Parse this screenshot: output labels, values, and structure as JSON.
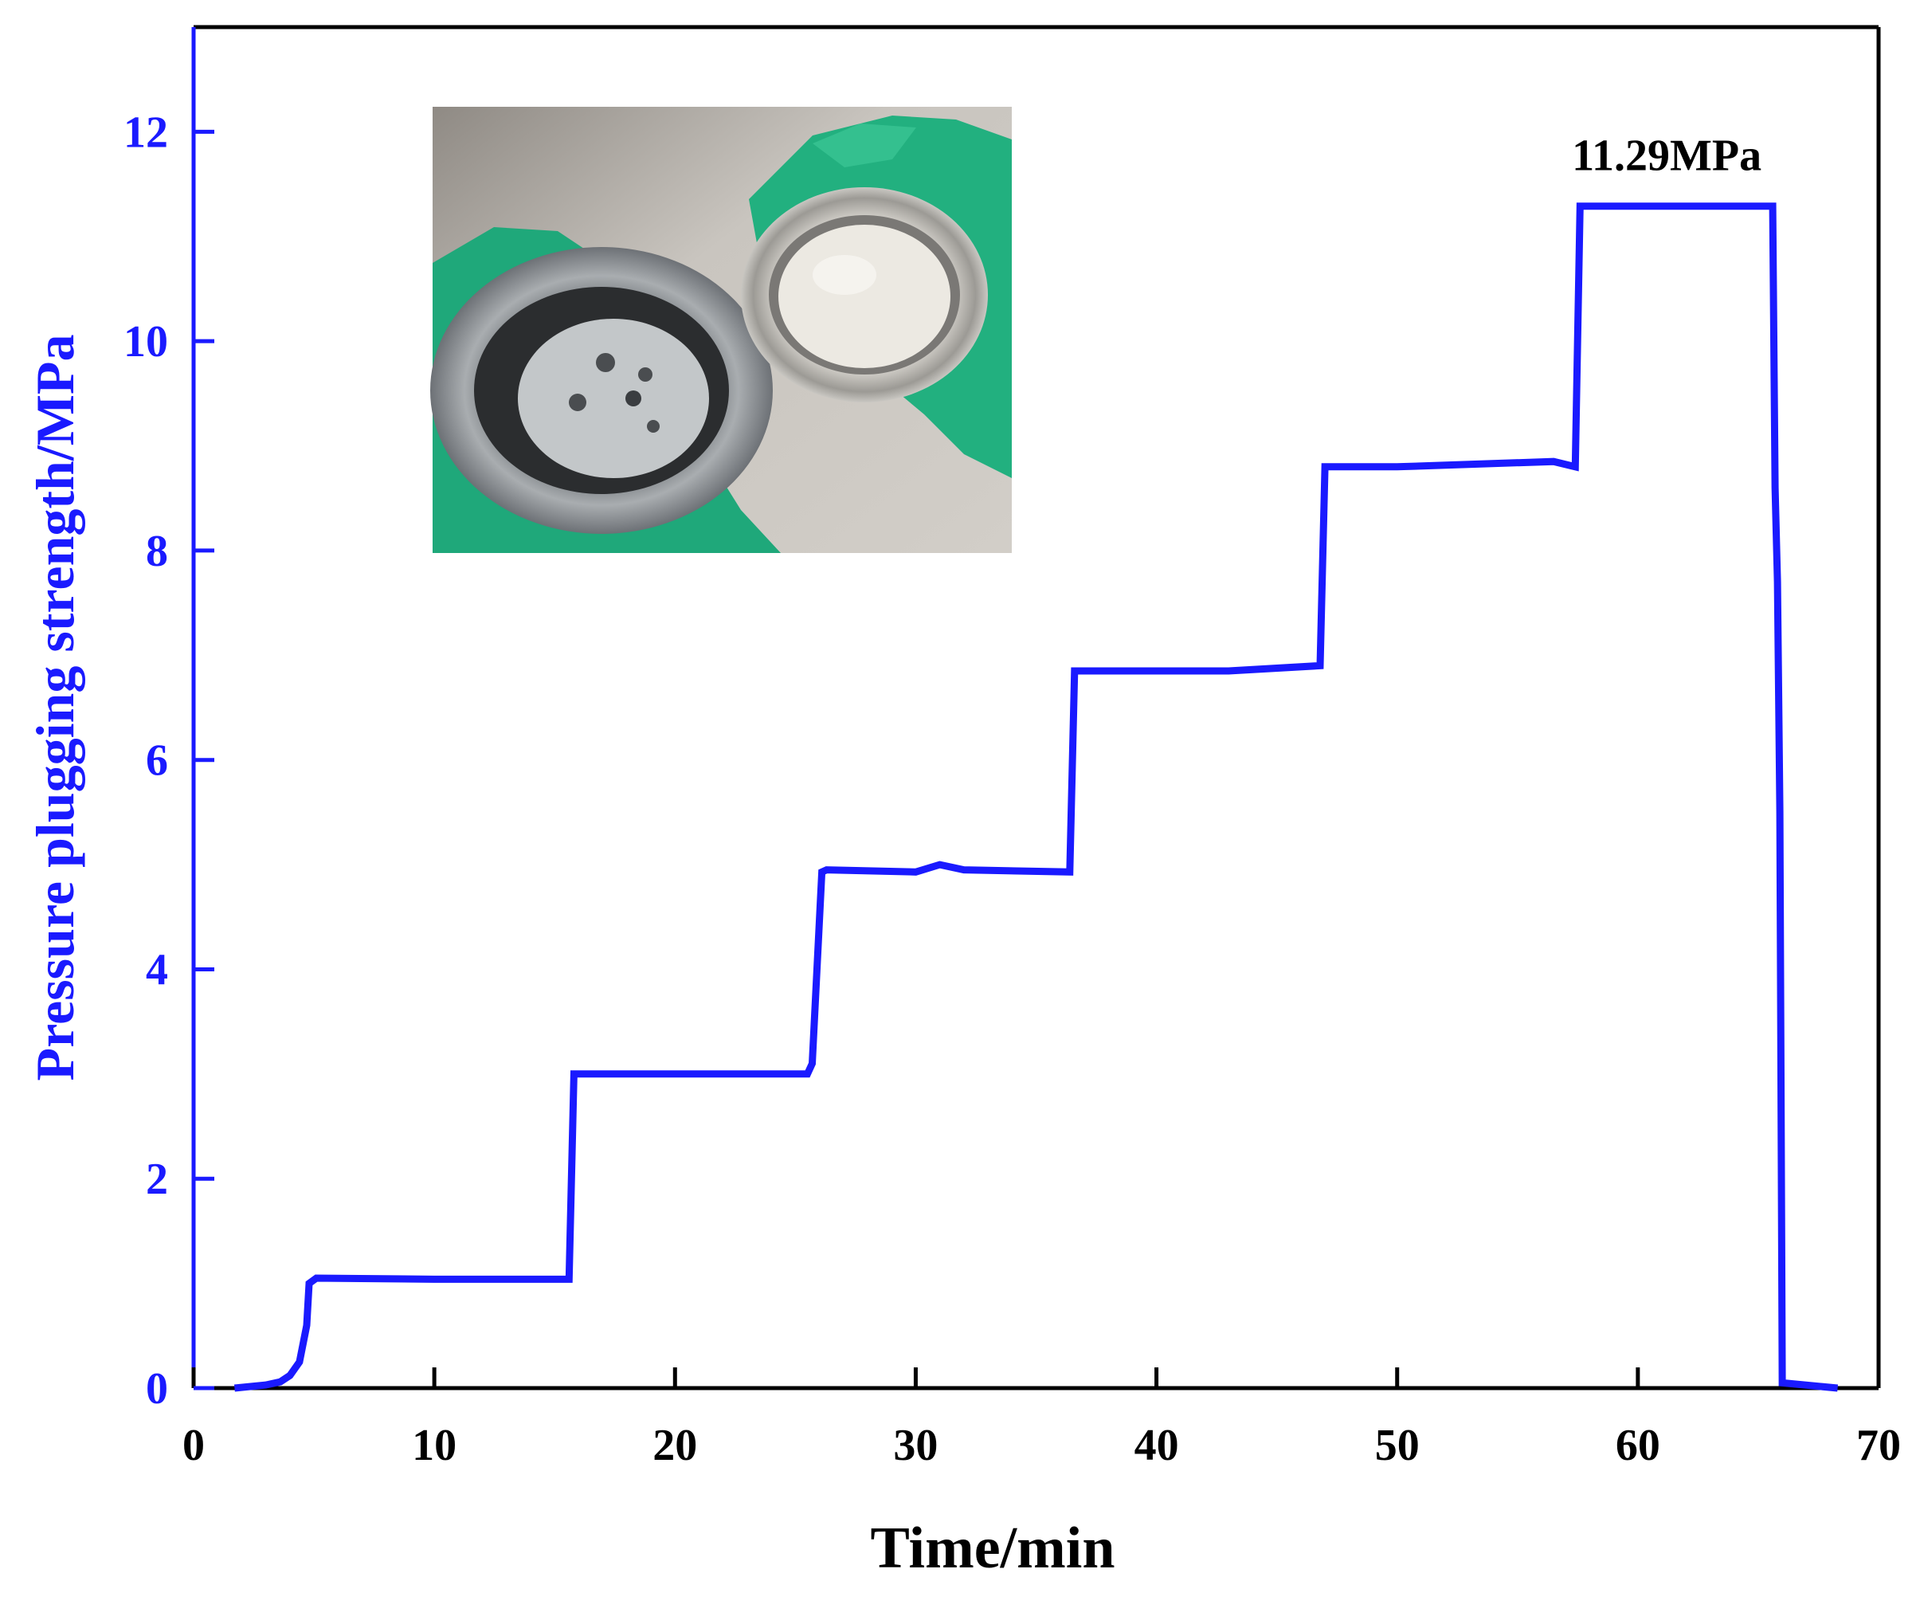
{
  "chart_data": {
    "type": "line",
    "title": "",
    "xlabel": "Time/min",
    "ylabel": "Pressure plugging strength/MPa",
    "xlim": [
      0,
      70
    ],
    "ylim": [
      0,
      13
    ],
    "x_ticks": [
      0,
      10,
      20,
      30,
      40,
      50,
      60,
      70
    ],
    "y_ticks": [
      0,
      2,
      4,
      6,
      8,
      10,
      12
    ],
    "x_tick_labels": [
      "0",
      "10",
      "20",
      "30",
      "40",
      "50",
      "60",
      "70"
    ],
    "y_tick_labels": [
      "0",
      "2",
      "4",
      "6",
      "8",
      "10",
      "12"
    ],
    "grid": false,
    "legend": "none",
    "colors": {
      "series": "#1a1aff",
      "y_axis": "#1a1aff",
      "x_axis": "#000000"
    },
    "series": [
      {
        "x": [
          1.7,
          3.0,
          3.6,
          4.0,
          4.4,
          4.7,
          4.8,
          5.1,
          10,
          15.6,
          15.8,
          20,
          25.5,
          25.7,
          26.1,
          26.3,
          30,
          31,
          32,
          36.4,
          36.6,
          40,
          43,
          46.8,
          47.0,
          50,
          56.5,
          57.4,
          57.6,
          65.6,
          65.7,
          65.8,
          65.9,
          66.0,
          68.3
        ],
        "y": [
          0,
          0.03,
          0.06,
          0.12,
          0.25,
          0.6,
          1.0,
          1.05,
          1.04,
          1.04,
          3.0,
          3.0,
          3.0,
          3.1,
          4.93,
          4.95,
          4.93,
          5.0,
          4.95,
          4.93,
          6.85,
          6.85,
          6.85,
          6.9,
          8.8,
          8.8,
          8.85,
          8.8,
          11.29,
          11.29,
          8.6,
          7.7,
          5.5,
          0.05,
          0
        ]
      }
    ],
    "annotations": [
      {
        "text": "11.29MPa",
        "x": 61.2,
        "y": 11.29
      }
    ]
  },
  "inset": {
    "description_label": "inset-photo"
  }
}
